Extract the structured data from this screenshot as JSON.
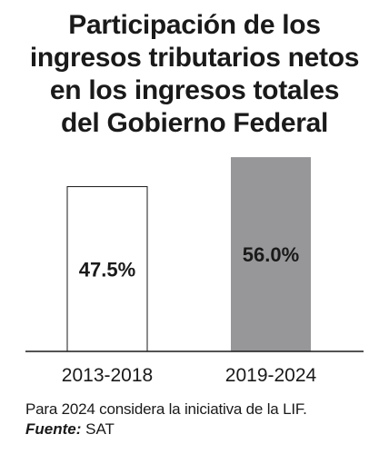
{
  "title_lines": [
    "Participación de los",
    "ingresos tributarios netos",
    "en los ingresos totales",
    "del Gobierno Federal"
  ],
  "chart_data": {
    "type": "bar",
    "title": "Participación de los ingresos tributarios netos en los ingresos totales del Gobierno Federal",
    "categories": [
      "2013-2018",
      "2019-2024"
    ],
    "values": [
      47.5,
      56.0
    ],
    "value_labels": [
      "47.5%",
      "56.0%"
    ],
    "unit": "%",
    "xlabel": "",
    "ylabel": "",
    "ylim": [
      0,
      60
    ],
    "grid": false,
    "legend": "none",
    "colors": {
      "bar_fills": [
        "#ffffff",
        "#97979a"
      ],
      "bar_outline": "#1a1a1a",
      "axis": "#1a1a1a",
      "text": "#1a1a1a"
    }
  },
  "footer": {
    "note": "Para 2024 considera la iniciativa de la LIF.",
    "source_label": "Fuente:",
    "source_value": "SAT"
  }
}
